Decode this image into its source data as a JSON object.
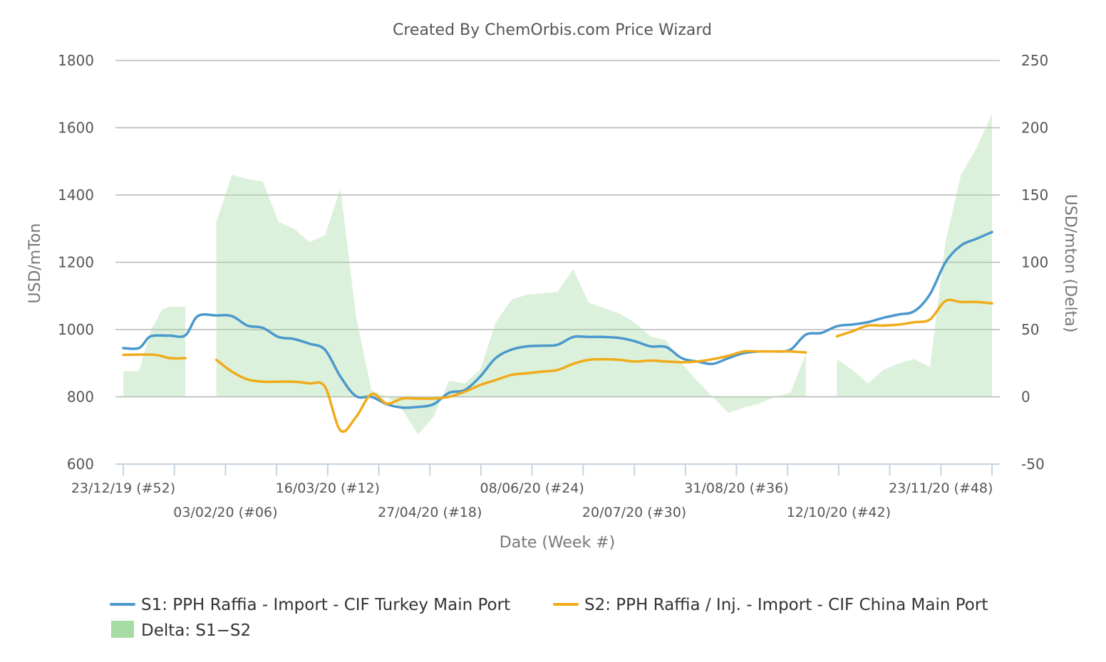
{
  "chart_data": {
    "type": "line",
    "title": "Created By ChemOrbis.com Price Wizard",
    "xlabel": "Date (Week #)",
    "ylabel": "USD/mTon",
    "y2label": "USD/mton (Delta)",
    "ylim": [
      600,
      1800
    ],
    "y2lim": [
      -50,
      250
    ],
    "y_ticks": [
      600,
      800,
      1000,
      1200,
      1400,
      1600,
      1800
    ],
    "y2_ticks": [
      -50,
      0,
      50,
      100,
      150,
      200,
      250
    ],
    "x_start_week": 0,
    "x_end_week": 51,
    "x_tick_labels": [
      {
        "week": 0,
        "label": "23/12/19 (#52)"
      },
      {
        "week": 6,
        "label": "03/02/20 (#06)"
      },
      {
        "week": 12,
        "label": "16/03/20 (#12)"
      },
      {
        "week": 18,
        "label": "27/04/20 (#18)"
      },
      {
        "week": 24,
        "label": "08/06/20 (#24)"
      },
      {
        "week": 30,
        "label": "20/07/20 (#30)"
      },
      {
        "week": 36,
        "label": "31/08/20 (#36)"
      },
      {
        "week": 42,
        "label": "12/10/20 (#42)"
      },
      {
        "week": 48,
        "label": "23/11/20 (#48)"
      }
    ],
    "x_tick_marks": [
      0,
      3,
      6,
      9,
      12,
      15,
      18,
      21,
      24,
      27,
      30,
      33,
      36,
      39,
      42,
      45,
      48,
      51
    ],
    "grid": true,
    "legend_position": "bottom",
    "series": [
      {
        "name": "S1: PPH Raffia - Import - CIF Turkey Main Port",
        "color": "#4a98cc",
        "axis": "left",
        "segments": [
          [
            [
              0,
              945
            ],
            [
              1,
              945
            ],
            [
              1.6,
              975
            ],
            [
              2,
              982
            ],
            [
              3,
              982
            ],
            [
              4,
              983
            ],
            [
              4.8,
              1040
            ],
            [
              6,
              1042
            ],
            [
              7,
              1040
            ],
            [
              8,
              1012
            ],
            [
              9,
              1005
            ],
            [
              10,
              978
            ],
            [
              11,
              972
            ],
            [
              12,
              958
            ],
            [
              13,
              940
            ],
            [
              14,
              860
            ],
            [
              15,
              802
            ],
            [
              16,
              800
            ],
            [
              17,
              778
            ],
            [
              18,
              768
            ],
            [
              19,
              770
            ],
            [
              20,
              778
            ],
            [
              21,
              812
            ],
            [
              22,
              820
            ],
            [
              23,
              860
            ],
            [
              24,
              915
            ],
            [
              25,
              940
            ],
            [
              26,
              950
            ],
            [
              27,
              952
            ],
            [
              28,
              955
            ],
            [
              29,
              978
            ],
            [
              30,
              978
            ],
            [
              31,
              978
            ],
            [
              32,
              975
            ],
            [
              33,
              965
            ],
            [
              34,
              950
            ],
            [
              35,
              948
            ],
            [
              36,
              915
            ],
            [
              37,
              905
            ],
            [
              38,
              898
            ],
            [
              39,
              915
            ],
            [
              40,
              930
            ],
            [
              41,
              935
            ],
            [
              42,
              935
            ],
            [
              43,
              940
            ],
            [
              44,
              985
            ],
            [
              45,
              990
            ],
            [
              46,
              1010
            ],
            [
              47,
              1015
            ],
            [
              48,
              1022
            ],
            [
              49,
              1035
            ],
            [
              50,
              1045
            ],
            [
              51,
              1055
            ],
            [
              52,
              1105
            ],
            [
              53,
              1200
            ],
            [
              54,
              1250
            ],
            [
              55,
              1270
            ],
            [
              56,
              1290
            ]
          ]
        ]
      },
      {
        "name": "S2: PPH Raffia / Inj. - Import - CIF China Main Port",
        "color": "#f0ab1a",
        "axis": "left",
        "segments": [
          [
            [
              0,
              925
            ],
            [
              2,
              925
            ],
            [
              3,
              915
            ],
            [
              4,
              915
            ]
          ],
          [
            [
              6,
              910
            ],
            [
              7,
              875
            ],
            [
              8,
              852
            ],
            [
              9,
              845
            ],
            [
              10,
              845
            ],
            [
              11,
              845
            ],
            [
              12,
              840
            ],
            [
              13,
              830
            ],
            [
              14,
              700
            ],
            [
              15,
              740
            ],
            [
              16,
              808
            ],
            [
              17,
              780
            ],
            [
              18,
              795
            ],
            [
              19,
              795
            ],
            [
              20,
              795
            ],
            [
              21,
              800
            ],
            [
              22,
              815
            ],
            [
              23,
              835
            ],
            [
              24,
              850
            ],
            [
              25,
              865
            ],
            [
              26,
              870
            ],
            [
              27,
              875
            ],
            [
              28,
              880
            ],
            [
              29,
              898
            ],
            [
              30,
              910
            ],
            [
              31,
              912
            ],
            [
              32,
              910
            ],
            [
              33,
              905
            ],
            [
              34,
              908
            ],
            [
              35,
              905
            ],
            [
              36,
              903
            ],
            [
              37,
              905
            ],
            [
              38,
              912
            ],
            [
              39,
              922
            ],
            [
              40,
              935
            ],
            [
              41,
              935
            ],
            [
              42,
              935
            ],
            [
              43,
              935
            ],
            [
              44,
              932
            ]
          ],
          [
            [
              46,
              980
            ],
            [
              47,
              995
            ],
            [
              48,
              1012
            ],
            [
              49,
              1012
            ],
            [
              50,
              1015
            ],
            [
              51,
              1022
            ],
            [
              52,
              1030
            ],
            [
              53,
              1085
            ],
            [
              54,
              1082
            ],
            [
              55,
              1082
            ],
            [
              56,
              1078
            ]
          ]
        ]
      },
      {
        "name": "Delta: S1−S2",
        "color": "#a8dca5",
        "axis": "right",
        "type": "area",
        "segments": [
          [
            [
              0,
              19
            ],
            [
              1,
              19
            ],
            [
              1.8,
              50
            ],
            [
              2.5,
              65
            ],
            [
              3,
              67
            ],
            [
              4,
              67
            ]
          ],
          [
            [
              6,
              130
            ],
            [
              7,
              165
            ],
            [
              8,
              162
            ],
            [
              9,
              160
            ],
            [
              10,
              130
            ],
            [
              11,
              125
            ],
            [
              12,
              115
            ],
            [
              13,
              120
            ],
            [
              14,
              155
            ],
            [
              15,
              60
            ],
            [
              16,
              5
            ],
            [
              17,
              0
            ],
            [
              18,
              -10
            ],
            [
              19,
              -28
            ],
            [
              20,
              -15
            ],
            [
              21,
              12
            ],
            [
              22,
              10
            ],
            [
              23,
              20
            ],
            [
              24,
              55
            ],
            [
              25,
              72
            ],
            [
              26,
              76
            ],
            [
              27,
              77
            ],
            [
              28,
              78
            ],
            [
              29,
              95
            ],
            [
              30,
              70
            ],
            [
              31,
              66
            ],
            [
              32,
              62
            ],
            [
              33,
              55
            ],
            [
              34,
              45
            ],
            [
              35,
              42
            ],
            [
              36,
              25
            ],
            [
              37,
              12
            ],
            [
              38,
              0
            ],
            [
              39,
              -12
            ],
            [
              40,
              -8
            ],
            [
              41,
              -5
            ],
            [
              42,
              0
            ],
            [
              43,
              3
            ],
            [
              44,
              32
            ]
          ],
          [
            [
              46,
              28
            ],
            [
              47,
              20
            ],
            [
              48,
              10
            ],
            [
              49,
              20
            ],
            [
              50,
              25
            ],
            [
              51,
              28
            ],
            [
              52,
              22
            ],
            [
              53,
              115
            ],
            [
              54,
              165
            ],
            [
              55,
              185
            ],
            [
              56,
              210
            ]
          ]
        ]
      }
    ]
  }
}
